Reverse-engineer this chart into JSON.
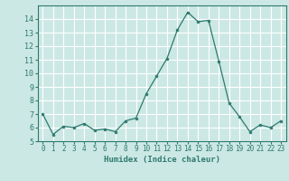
{
  "x": [
    0,
    1,
    2,
    3,
    4,
    5,
    6,
    7,
    8,
    9,
    10,
    11,
    12,
    13,
    14,
    15,
    16,
    17,
    18,
    19,
    20,
    21,
    22,
    23
  ],
  "y": [
    7.0,
    5.5,
    6.1,
    6.0,
    6.3,
    5.8,
    5.9,
    5.7,
    6.5,
    6.7,
    8.5,
    9.8,
    11.1,
    13.2,
    14.5,
    13.8,
    13.9,
    10.9,
    7.8,
    6.8,
    5.7,
    6.2,
    6.0,
    6.5
  ],
  "xlabel": "Humidex (Indice chaleur)",
  "xlim": [
    -0.5,
    23.5
  ],
  "ylim": [
    5,
    15
  ],
  "yticks": [
    5,
    6,
    7,
    8,
    9,
    10,
    11,
    12,
    13,
    14
  ],
  "xticks": [
    0,
    1,
    2,
    3,
    4,
    5,
    6,
    7,
    8,
    9,
    10,
    11,
    12,
    13,
    14,
    15,
    16,
    17,
    18,
    19,
    20,
    21,
    22,
    23
  ],
  "line_color": "#2d7a6e",
  "marker_color": "#2d7a6e",
  "bg_color": "#cce8e4",
  "grid_color": "#ffffff",
  "tick_label_color": "#2d7a6e",
  "axis_color": "#2d7a6e",
  "xlabel_fontsize": 6.5,
  "tick_fontsize": 5.5,
  "ytick_fontsize": 6.0
}
